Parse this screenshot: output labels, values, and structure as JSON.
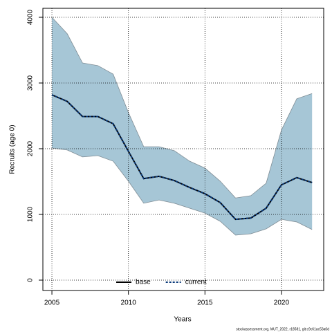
{
  "chart_data": {
    "type": "line",
    "xlabel": "Years",
    "ylabel": "Recruits (age 0)",
    "footer": "stockassessment.org, MUT_2022, r18581, git:c9c61ac53a0d",
    "x": [
      2005,
      2006,
      2007,
      2008,
      2009,
      2010,
      2011,
      2012,
      2013,
      2014,
      2015,
      2016,
      2017,
      2018,
      2019,
      2020,
      2021,
      2022
    ],
    "series": [
      {
        "name": "base",
        "color": "#000000",
        "dashed": false,
        "values": [
          2820,
          2720,
          2490,
          2490,
          2380,
          1960,
          1545,
          1580,
          1515,
          1410,
          1315,
          1180,
          925,
          945,
          1095,
          1450,
          1560,
          1485
        ]
      },
      {
        "name": "current",
        "color": "#0a3a7a",
        "dashed": true,
        "values": [
          2820,
          2720,
          2490,
          2490,
          2380,
          1960,
          1545,
          1580,
          1515,
          1410,
          1315,
          1180,
          925,
          945,
          1095,
          1450,
          1560,
          1485
        ]
      }
    ],
    "band": {
      "color": "#a6c6d6",
      "edge_color": "#7f8c94",
      "upper": [
        4000,
        3750,
        3305,
        3265,
        3135,
        2550,
        2030,
        2030,
        1970,
        1810,
        1705,
        1505,
        1250,
        1285,
        1475,
        2285,
        2760,
        2840
      ],
      "lower": [
        2010,
        1980,
        1875,
        1895,
        1810,
        1505,
        1170,
        1220,
        1170,
        1095,
        1020,
        895,
        685,
        705,
        780,
        925,
        885,
        770
      ]
    },
    "xlim": [
      2004.41,
      2022.76
    ],
    "ylim": [
      -158,
      4137
    ],
    "xticks": [
      2005,
      2010,
      2015,
      2020
    ],
    "yticks": [
      0,
      1000,
      2000,
      3000,
      4000
    ],
    "grid": true,
    "legend": "bottom"
  }
}
